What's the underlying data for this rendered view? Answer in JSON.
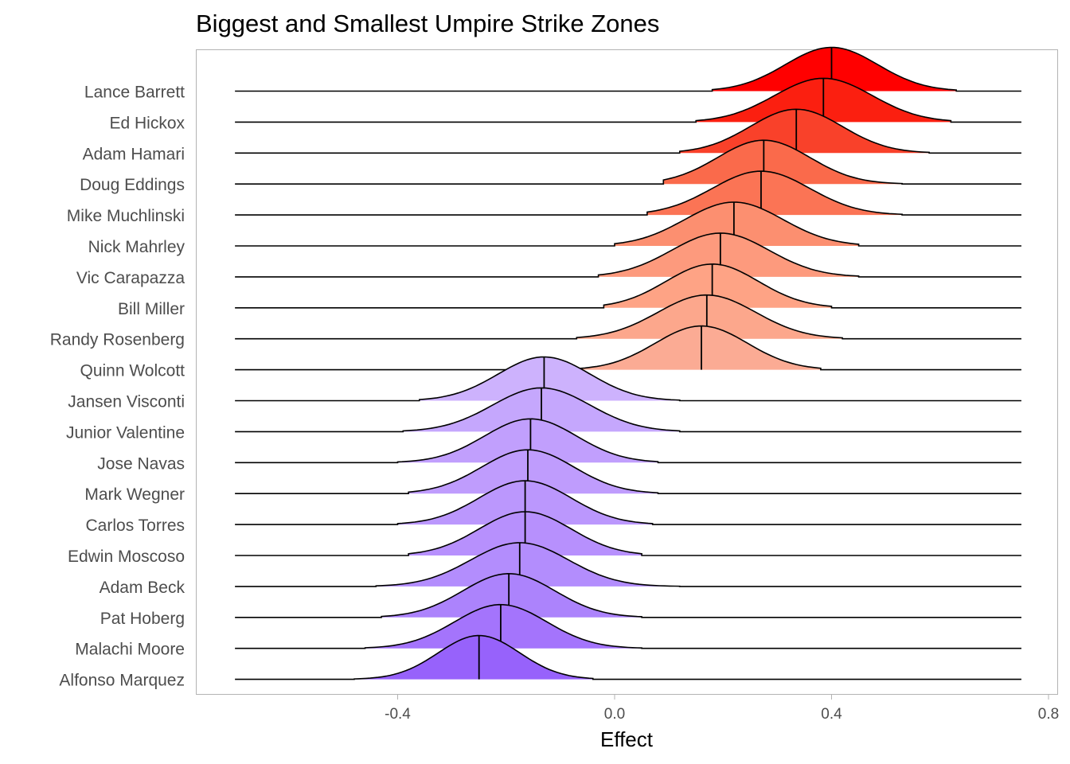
{
  "chart_data": {
    "type": "ridgeline",
    "title": "Biggest and Smallest Umpire Strike Zones",
    "xlabel": "Effect",
    "ylabel": "",
    "xlim": [
      -0.8,
      0.82
    ],
    "x_ticks": [
      -0.4,
      0.0,
      0.4,
      0.8
    ],
    "x_tick_labels": [
      "-0.4",
      "0.0",
      "0.4",
      "0.8"
    ],
    "grid": false,
    "series": [
      {
        "name": "Lance Barrett",
        "center": 0.4,
        "sd": 0.085,
        "range": [
          0.18,
          0.63
        ],
        "color": "#ff0000"
      },
      {
        "name": "Ed Hickox",
        "center": 0.385,
        "sd": 0.09,
        "range": [
          0.15,
          0.62
        ],
        "color": "#fb1f10"
      },
      {
        "name": "Adam Hamari",
        "center": 0.335,
        "sd": 0.085,
        "range": [
          0.12,
          0.58
        ],
        "color": "#f9412a"
      },
      {
        "name": "Doug Eddings",
        "center": 0.275,
        "sd": 0.085,
        "range": [
          0.09,
          0.53
        ],
        "color": "#fa6a4b"
      },
      {
        "name": "Mike Muchlinski",
        "center": 0.27,
        "sd": 0.09,
        "range": [
          0.06,
          0.53
        ],
        "color": "#fb7455"
      },
      {
        "name": "Nick Mahrley",
        "center": 0.22,
        "sd": 0.09,
        "range": [
          0.0,
          0.45
        ],
        "color": "#fc8f70"
      },
      {
        "name": "Vic Carapazza",
        "center": 0.195,
        "sd": 0.09,
        "range": [
          -0.03,
          0.45
        ],
        "color": "#fd9a7d"
      },
      {
        "name": "Bill Miller",
        "center": 0.18,
        "sd": 0.085,
        "range": [
          -0.02,
          0.4
        ],
        "color": "#fea385"
      },
      {
        "name": "Randy Rosenberg",
        "center": 0.17,
        "sd": 0.09,
        "range": [
          -0.07,
          0.42
        ],
        "color": "#fca78c"
      },
      {
        "name": "Quinn Wolcott",
        "center": 0.16,
        "sd": 0.085,
        "range": [
          -0.07,
          0.38
        ],
        "color": "#fbab94"
      },
      {
        "name": "Jansen Visconti",
        "center": -0.13,
        "sd": 0.085,
        "range": [
          -0.36,
          0.12
        ],
        "color": "#cdb2fd"
      },
      {
        "name": "Junior Valentine",
        "center": -0.135,
        "sd": 0.09,
        "range": [
          -0.39,
          0.12
        ],
        "color": "#c5a7fd"
      },
      {
        "name": "Jose Navas",
        "center": -0.155,
        "sd": 0.085,
        "range": [
          -0.4,
          0.08
        ],
        "color": "#c19ffd"
      },
      {
        "name": "Mark Wegner",
        "center": -0.16,
        "sd": 0.085,
        "range": [
          -0.38,
          0.08
        ],
        "color": "#bf9cfd"
      },
      {
        "name": "Carlos Torres",
        "center": -0.165,
        "sd": 0.085,
        "range": [
          -0.4,
          0.07
        ],
        "color": "#bb97fd"
      },
      {
        "name": "Edwin Moscoso",
        "center": -0.165,
        "sd": 0.085,
        "range": [
          -0.38,
          0.05
        ],
        "color": "#b790fd"
      },
      {
        "name": "Adam Beck",
        "center": -0.175,
        "sd": 0.09,
        "range": [
          -0.44,
          0.12
        ],
        "color": "#b38dfd"
      },
      {
        "name": "Pat Hoberg",
        "center": -0.195,
        "sd": 0.085,
        "range": [
          -0.43,
          0.05
        ],
        "color": "#ac83fc"
      },
      {
        "name": "Malachi Moore",
        "center": -0.21,
        "sd": 0.085,
        "range": [
          -0.46,
          0.05
        ],
        "color": "#a474fc"
      },
      {
        "name": "Alfonso Marquez",
        "center": -0.25,
        "sd": 0.075,
        "range": [
          -0.48,
          -0.04
        ],
        "color": "#9762fb"
      }
    ]
  }
}
